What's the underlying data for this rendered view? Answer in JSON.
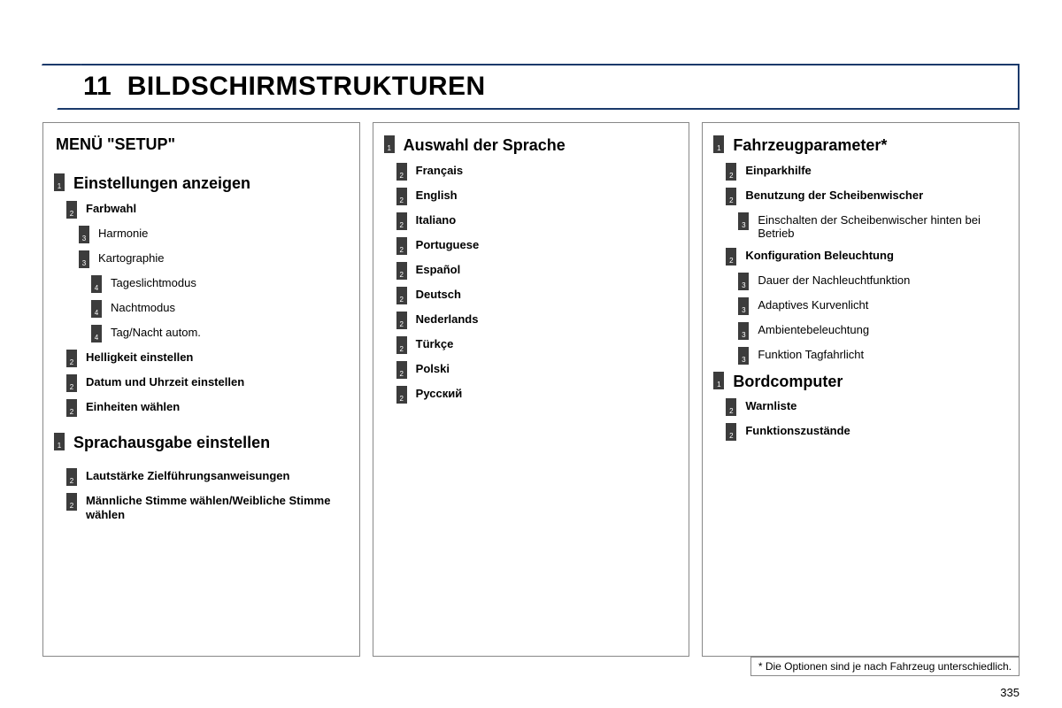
{
  "header": {
    "chapter": "11",
    "title": "BILDSCHIRMSTRUKTUREN"
  },
  "page_number": "335",
  "footnote": "* Die Optionen sind je nach Fahrzeug unterschiedlich.",
  "columns": [
    {
      "super_title": "MENÜ \"SETUP\"",
      "items": [
        {
          "level": 1,
          "num": "1",
          "text": "Einstellungen anzeigen"
        },
        {
          "level": 2,
          "num": "2",
          "text": "Farbwahl"
        },
        {
          "level": 3,
          "num": "3",
          "text": "Harmonie"
        },
        {
          "level": 3,
          "num": "3",
          "text": "Kartographie"
        },
        {
          "level": 4,
          "num": "4",
          "text": "Tageslichtmodus"
        },
        {
          "level": 4,
          "num": "4",
          "text": "Nachtmodus"
        },
        {
          "level": 4,
          "num": "4",
          "text": "Tag/Nacht autom."
        },
        {
          "level": 2,
          "num": "2",
          "text": "Helligkeit einstellen"
        },
        {
          "level": 2,
          "num": "2",
          "text": "Datum und Uhrzeit einstellen"
        },
        {
          "level": 2,
          "num": "2",
          "text": "Einheiten wählen"
        },
        {
          "level": 1,
          "num": "1",
          "text": "Sprachausgabe einstellen",
          "gap": "lg"
        },
        {
          "level": 2,
          "num": "2",
          "text": "Lautstärke Zielführungsanweisungen",
          "gap": "lg"
        },
        {
          "level": 2,
          "num": "2",
          "text": "Männliche Stimme wählen/Weibliche Stimme wählen"
        }
      ]
    },
    {
      "items": [
        {
          "level": 1,
          "num": "1",
          "text": "Auswahl der Sprache"
        },
        {
          "level": 2,
          "num": "2",
          "text": "Français"
        },
        {
          "level": 2,
          "num": "2",
          "text": "English"
        },
        {
          "level": 2,
          "num": "2",
          "text": "Italiano"
        },
        {
          "level": 2,
          "num": "2",
          "text": "Portuguese"
        },
        {
          "level": 2,
          "num": "2",
          "text": "Español"
        },
        {
          "level": 2,
          "num": "2",
          "text": "Deutsch"
        },
        {
          "level": 2,
          "num": "2",
          "text": "Nederlands"
        },
        {
          "level": 2,
          "num": "2",
          "text": "Türkçe"
        },
        {
          "level": 2,
          "num": "2",
          "text": "Polski"
        },
        {
          "level": 2,
          "num": "2",
          "text": "Русский"
        }
      ]
    },
    {
      "items": [
        {
          "level": 1,
          "num": "1",
          "text": "Fahrzeugparameter*"
        },
        {
          "level": 2,
          "num": "2",
          "text": "Einparkhilfe"
        },
        {
          "level": 2,
          "num": "2",
          "text": "Benutzung der Scheibenwischer"
        },
        {
          "level": 3,
          "num": "3",
          "text": "Einschalten der Scheibenwischer hinten bei Betrieb"
        },
        {
          "level": 2,
          "num": "2",
          "text": "Konfiguration Beleuchtung"
        },
        {
          "level": 3,
          "num": "3",
          "text": "Dauer der Nachleuchtfunktion"
        },
        {
          "level": 3,
          "num": "3",
          "text": "Adaptives Kurvenlicht"
        },
        {
          "level": 3,
          "num": "3",
          "text": "Ambientebeleuchtung"
        },
        {
          "level": 3,
          "num": "3",
          "text": "Funktion Tagfahrlicht"
        },
        {
          "level": 1,
          "num": "1",
          "text": "Bordcomputer",
          "gap": "sm"
        },
        {
          "level": 2,
          "num": "2",
          "text": "Warnliste"
        },
        {
          "level": 2,
          "num": "2",
          "text": "Funktionszustände"
        }
      ]
    }
  ]
}
